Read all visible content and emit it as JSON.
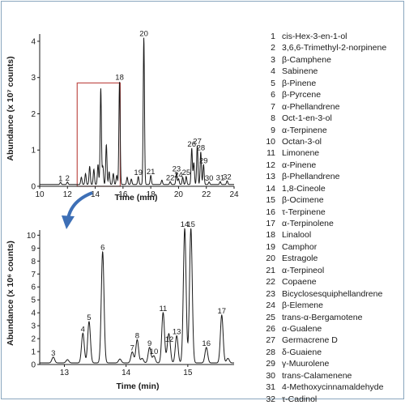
{
  "chart_data": [
    {
      "type": "line",
      "xlabel": "Time (min)",
      "ylabel": "Abundance (x 10⁷ counts)",
      "xlim": [
        10,
        24
      ],
      "ylim": [
        0,
        4.2
      ],
      "x_ticks": [
        10,
        12,
        14,
        16,
        18,
        20,
        22,
        24
      ],
      "y_ticks": [
        0,
        1,
        2,
        3,
        4
      ],
      "grid": false,
      "line_color": "#1a1a1a",
      "zoom_box_color": "#c0504d",
      "zoom_box": {
        "x": [
          12.7,
          15.8
        ],
        "y_top": 2.85
      },
      "peaks": [
        {
          "label": "1",
          "x": 11.5,
          "y": 0.06
        },
        {
          "label": "2",
          "x": 12.0,
          "y": 0.07
        },
        {
          "label": "18",
          "x": 15.75,
          "y": 2.85
        },
        {
          "label": "19",
          "x": 17.1,
          "y": 0.22
        },
        {
          "label": "20",
          "x": 17.5,
          "y": 4.05
        },
        {
          "label": "21",
          "x": 18.0,
          "y": 0.25
        },
        {
          "label": "22",
          "x": 19.4,
          "y": 0.08
        },
        {
          "label": "23",
          "x": 19.85,
          "y": 0.32
        },
        {
          "label": "24",
          "x": 20.0,
          "y": 0.16
        },
        {
          "label": "25",
          "x": 20.55,
          "y": 0.22
        },
        {
          "label": "26",
          "x": 20.95,
          "y": 1.0
        },
        {
          "label": "27",
          "x": 21.35,
          "y": 1.08
        },
        {
          "label": "28",
          "x": 21.6,
          "y": 0.9
        },
        {
          "label": "29",
          "x": 21.8,
          "y": 0.55
        },
        {
          "label": "30",
          "x": 22.2,
          "y": 0.07
        },
        {
          "label": "31",
          "x": 23.0,
          "y": 0.08
        },
        {
          "label": "32",
          "x": 23.5,
          "y": 0.1
        }
      ],
      "unlabeled_peaks": [
        {
          "x": 13.0,
          "y": 0.2
        },
        {
          "x": 13.3,
          "y": 0.3
        },
        {
          "x": 13.6,
          "y": 0.5
        },
        {
          "x": 13.9,
          "y": 0.42
        },
        {
          "x": 14.2,
          "y": 0.55
        },
        {
          "x": 14.4,
          "y": 2.65
        },
        {
          "x": 14.55,
          "y": 0.5
        },
        {
          "x": 14.8,
          "y": 1.1
        },
        {
          "x": 15.0,
          "y": 0.35
        },
        {
          "x": 15.3,
          "y": 0.3
        },
        {
          "x": 15.55,
          "y": 0.25
        },
        {
          "x": 16.3,
          "y": 0.2
        },
        {
          "x": 16.6,
          "y": 0.15
        },
        {
          "x": 18.8,
          "y": 0.12
        },
        {
          "x": 20.3,
          "y": 0.2
        },
        {
          "x": 21.1,
          "y": 0.6
        }
      ]
    },
    {
      "type": "line",
      "xlabel": "Time (min)",
      "ylabel": "Abundance (x 10⁶ counts)",
      "xlim": [
        12.6,
        15.75
      ],
      "ylim": [
        0,
        10.4
      ],
      "x_ticks": [
        13,
        14,
        15
      ],
      "y_ticks": [
        0,
        1,
        2,
        3,
        4,
        5,
        6,
        7,
        8,
        9,
        10
      ],
      "grid": false,
      "line_color": "#1a1a1a",
      "peaks": [
        {
          "label": "3",
          "x": 12.82,
          "y": 0.45
        },
        {
          "label": "4",
          "x": 13.3,
          "y": 2.3
        },
        {
          "label": "5",
          "x": 13.4,
          "y": 3.2
        },
        {
          "label": "6",
          "x": 13.62,
          "y": 8.6
        },
        {
          "label": "7",
          "x": 14.1,
          "y": 0.85
        },
        {
          "label": "8",
          "x": 14.18,
          "y": 1.8
        },
        {
          "label": "9",
          "x": 14.38,
          "y": 1.2
        },
        {
          "label": "10",
          "x": 14.45,
          "y": 0.55
        },
        {
          "label": "11",
          "x": 14.6,
          "y": 3.9
        },
        {
          "label": "12",
          "x": 14.7,
          "y": 1.5
        },
        {
          "label": "13",
          "x": 14.82,
          "y": 2.1
        },
        {
          "label": "14",
          "x": 14.95,
          "y": 10.4
        },
        {
          "label": "15",
          "x": 15.05,
          "y": 10.4
        },
        {
          "label": "16",
          "x": 15.3,
          "y": 1.2
        },
        {
          "label": "17",
          "x": 15.55,
          "y": 3.7
        }
      ],
      "unlabeled_peaks": [
        {
          "x": 13.05,
          "y": 0.25
        },
        {
          "x": 13.9,
          "y": 0.3
        },
        {
          "x": 14.68,
          "y": 1.0
        },
        {
          "x": 14.26,
          "y": 0.35
        },
        {
          "x": 15.65,
          "y": 0.35
        }
      ]
    }
  ],
  "legend": [
    {
      "num": "1",
      "name": "cis-Hex-3-en-1-ol"
    },
    {
      "num": "2",
      "name": "3,6,6-Trimethyl-2-norpinene"
    },
    {
      "num": "3",
      "name": "β-Camphene"
    },
    {
      "num": "4",
      "name": "Sabinene"
    },
    {
      "num": "5",
      "name": "β-Pinene"
    },
    {
      "num": "6",
      "name": "β-Pyrcene"
    },
    {
      "num": "7",
      "name": "α-Phellandrene"
    },
    {
      "num": "8",
      "name": "Oct-1-en-3-ol"
    },
    {
      "num": "9",
      "name": "α-Terpinene"
    },
    {
      "num": "10",
      "name": "Octan-3-ol"
    },
    {
      "num": "11",
      "name": "Limonene"
    },
    {
      "num": "12",
      "name": "α-Pinene"
    },
    {
      "num": "13",
      "name": "β-Phellandrene"
    },
    {
      "num": "14",
      "name": "1,8-Cineole"
    },
    {
      "num": "15",
      "name": "β-Ocimene"
    },
    {
      "num": "16",
      "name": "τ-Terpinene"
    },
    {
      "num": "17",
      "name": "α-Terpinolene"
    },
    {
      "num": "18",
      "name": "Linalool"
    },
    {
      "num": "19",
      "name": "Camphor"
    },
    {
      "num": "20",
      "name": "Estragole"
    },
    {
      "num": "21",
      "name": "α-Terpineol"
    },
    {
      "num": "22",
      "name": "Copaene"
    },
    {
      "num": "23",
      "name": "Bicyclosesquiphellandrene"
    },
    {
      "num": "24",
      "name": "β-Elemene"
    },
    {
      "num": "25",
      "name": "trans-α-Bergamotene"
    },
    {
      "num": "26",
      "name": "α-Gualene"
    },
    {
      "num": "27",
      "name": "Germacrene D"
    },
    {
      "num": "28",
      "name": "δ-Guaiene"
    },
    {
      "num": "29",
      "name": "γ-Muurolene"
    },
    {
      "num": "30",
      "name": "trans-Calamenene"
    },
    {
      "num": "31",
      "name": "4-Methoxycinnamaldehyde"
    },
    {
      "num": "32",
      "name": "τ-Cadinol"
    }
  ],
  "arrow_color": "#3d6fb6",
  "frame_color": "#8aa7bf"
}
